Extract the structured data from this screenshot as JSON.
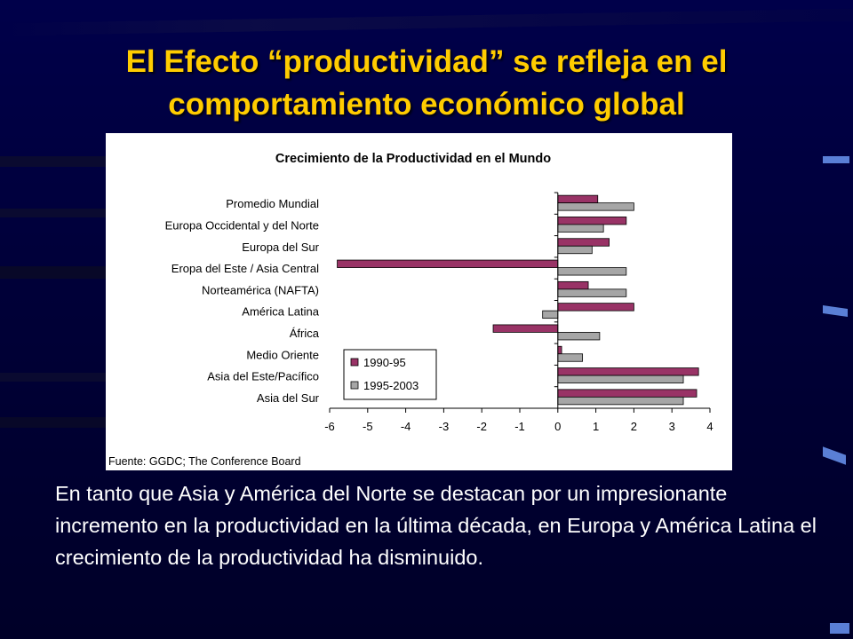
{
  "slide": {
    "title_line1": "El Efecto “productividad” se refleja en el",
    "title_line2": "comportamiento económico global",
    "body_text": "En tanto que Asia y América del Norte se destacan por un impresionante incremento en la productividad en la última década, en Europa y América Latina el crecimiento de la productividad ha disminuido."
  },
  "colors": {
    "background": "#000038",
    "title": "#ffcc00",
    "series_1990": "#993366",
    "series_1995": "#a6a6a6"
  },
  "chart_data": {
    "type": "bar",
    "orientation": "horizontal",
    "title": "Crecimiento de la Productividad en el Mundo",
    "source": "Fuente: GGDC; The Conference Board",
    "categories": [
      "Promedio Mundial",
      "Europa Occidental y del Norte",
      "Europa del Sur",
      "Eropa del Este / Asia Central",
      "Norteamérica (NAFTA)",
      "América Latina",
      "África",
      "Medio Oriente",
      "Asia del Este/Pacífico",
      "Asia del Sur"
    ],
    "series": [
      {
        "name": "1990-95",
        "color": "#993366",
        "values": [
          1.05,
          1.8,
          1.35,
          -5.8,
          0.8,
          2.0,
          -1.7,
          0.1,
          3.7,
          3.65
        ]
      },
      {
        "name": "1995-2003",
        "color": "#a6a6a6",
        "values": [
          2.0,
          1.2,
          0.9,
          1.8,
          1.8,
          -0.4,
          1.1,
          0.65,
          3.3,
          3.3
        ]
      }
    ],
    "xlim": [
      -6,
      4
    ],
    "xticks": [
      "-6",
      "-5",
      "-4",
      "-3",
      "-2",
      "-1",
      "0",
      "1",
      "2",
      "3",
      "4"
    ],
    "legend_position": "bottom-left",
    "grid": false
  }
}
